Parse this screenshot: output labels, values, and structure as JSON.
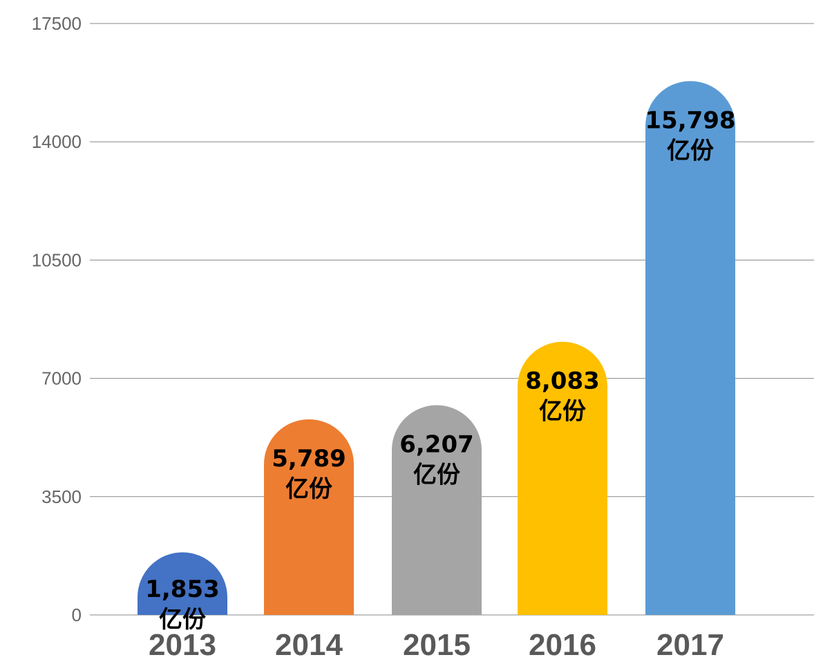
{
  "chart_data": {
    "type": "bar",
    "categories": [
      "2013",
      "2014",
      "2015",
      "2016",
      "2017"
    ],
    "values": [
      1853,
      5789,
      6207,
      8083,
      15798
    ],
    "data_labels": [
      "1,853",
      "5,789",
      "6,207",
      "8,083",
      "15,798"
    ],
    "unit_label": "亿份",
    "colors": [
      "#4472C4",
      "#ED7D31",
      "#A5A5A5",
      "#FFC000",
      "#5B9BD5"
    ],
    "yticks": [
      0,
      3500,
      7000,
      10500,
      14000,
      17500
    ],
    "ylim": [
      0,
      17500
    ],
    "grid": true,
    "bar_shape": "rounded-top",
    "title": "",
    "xlabel": "",
    "ylabel": ""
  }
}
